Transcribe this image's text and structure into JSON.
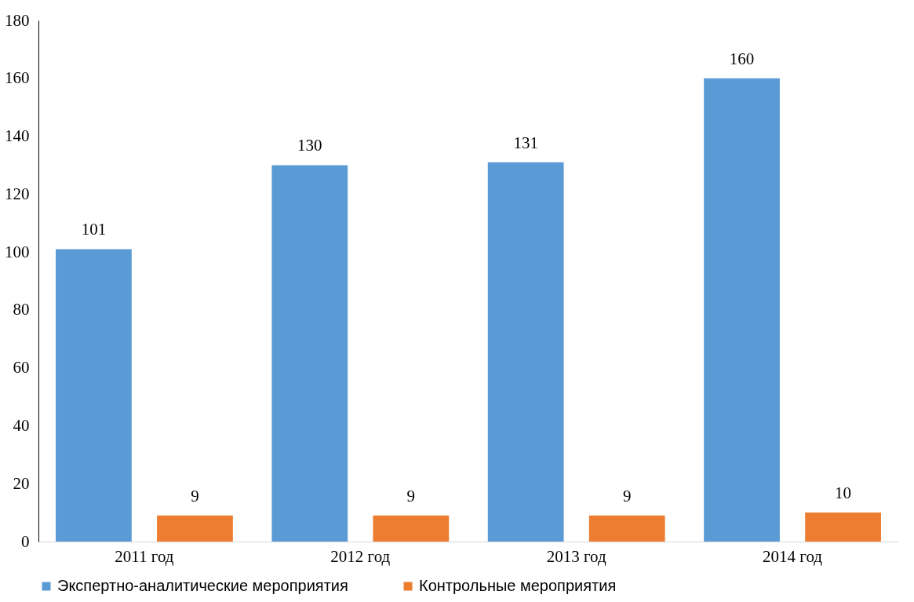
{
  "chart_data": {
    "type": "bar",
    "categories": [
      "2011 год",
      "2012 год",
      "2013 год",
      "2014 год"
    ],
    "series": [
      {
        "name": "Экспертно-аналитические  мероприятия",
        "color": "#5b9bd5",
        "values": [
          101,
          130,
          131,
          160
        ]
      },
      {
        "name": "Контрольные мероприятия",
        "color": "#ed7d31",
        "values": [
          9,
          9,
          9,
          10
        ]
      }
    ],
    "ylim": [
      0,
      180
    ],
    "yticks": [
      0,
      20,
      40,
      60,
      80,
      100,
      120,
      140,
      160,
      180
    ],
    "grid": false,
    "legend": "bottom",
    "data_labels": true
  }
}
